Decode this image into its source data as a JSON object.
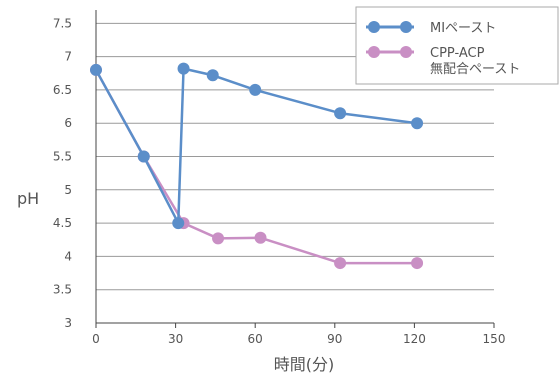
{
  "chart_data": {
    "type": "line",
    "title": "",
    "xlabel": "時間(分)",
    "ylabel": "pH",
    "xlim": [
      0,
      150
    ],
    "ylim": [
      3,
      7.7
    ],
    "x_ticks": [
      "0",
      "30",
      "60",
      "90",
      "120",
      "150"
    ],
    "y_ticks": [
      "3",
      "3.5",
      "4",
      "4.5",
      "5",
      "5.5",
      "6",
      "6.5",
      "7",
      "7.5"
    ],
    "grid": "horizontal",
    "legend_position": "top-right",
    "series": [
      {
        "name": "MIペースト",
        "color": "#5b8ec9",
        "points": [
          [
            0,
            6.8
          ],
          [
            18,
            5.5
          ],
          [
            31,
            4.5
          ],
          [
            33,
            6.82
          ],
          [
            44,
            6.72
          ],
          [
            60,
            6.5
          ],
          [
            92,
            6.15
          ],
          [
            121,
            6.0
          ]
        ]
      },
      {
        "name": "CPP-ACP\n無配合ペースト",
        "color": "#c98fc4",
        "points": [
          [
            0,
            6.8
          ],
          [
            18,
            5.5
          ],
          [
            33,
            4.5
          ],
          [
            46,
            4.27
          ],
          [
            62,
            4.28
          ],
          [
            92,
            3.9
          ],
          [
            121,
            3.9
          ]
        ]
      }
    ]
  }
}
